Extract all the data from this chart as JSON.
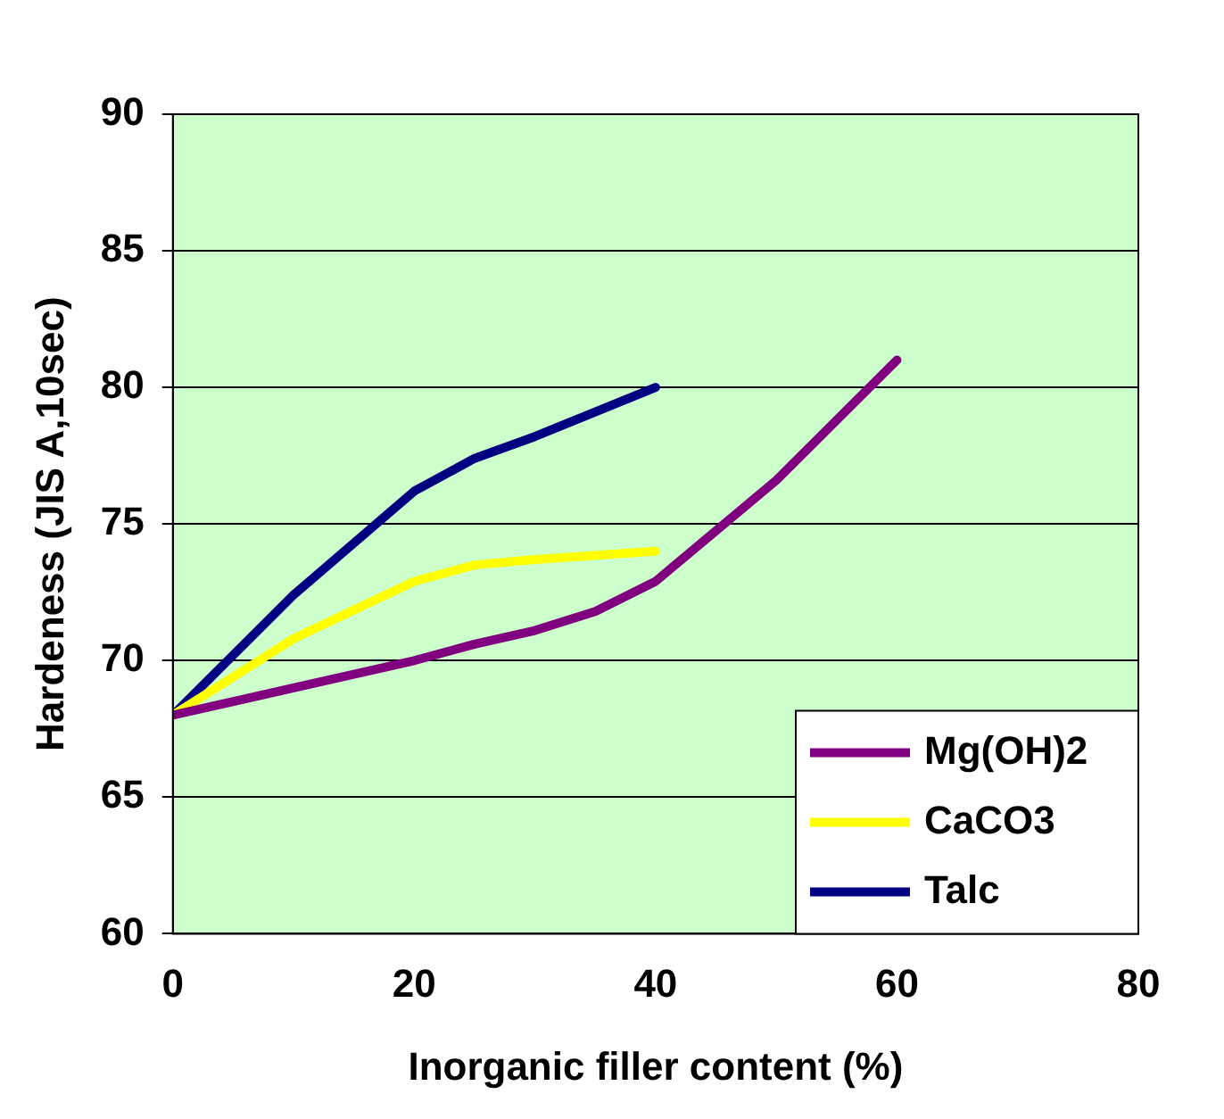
{
  "chart_data": {
    "type": "line",
    "xlabel": "Inorganic filler content (%)",
    "ylabel": "Hardeness (JIS A,10sec)",
    "xlim": [
      0,
      80
    ],
    "xticks": [
      0,
      20,
      40,
      60,
      80
    ],
    "ylim": [
      60,
      90
    ],
    "yticks": [
      60,
      65,
      70,
      75,
      80,
      85,
      90
    ],
    "grid": "y",
    "legend": "bottom right",
    "marker": "none",
    "line_style": "solid",
    "series": [
      {
        "name": "Mg(OH)2",
        "color": "#800080",
        "x": [
          0,
          10,
          20,
          25,
          30,
          35,
          40,
          50,
          60
        ],
        "values": [
          68,
          69,
          70,
          70.6,
          71.1,
          71.8,
          72.9,
          76.6,
          81
        ]
      },
      {
        "name": "CaCO3",
        "color": "#ffff00",
        "x": [
          0,
          10,
          20,
          25,
          30,
          40
        ],
        "values": [
          68,
          70.8,
          72.9,
          73.5,
          73.7,
          74
        ]
      },
      {
        "name": "Talc",
        "color": "#000080",
        "x": [
          0,
          10,
          20,
          25,
          30,
          40
        ],
        "values": [
          68,
          72.4,
          76.2,
          77.4,
          78.2,
          80
        ]
      }
    ]
  }
}
